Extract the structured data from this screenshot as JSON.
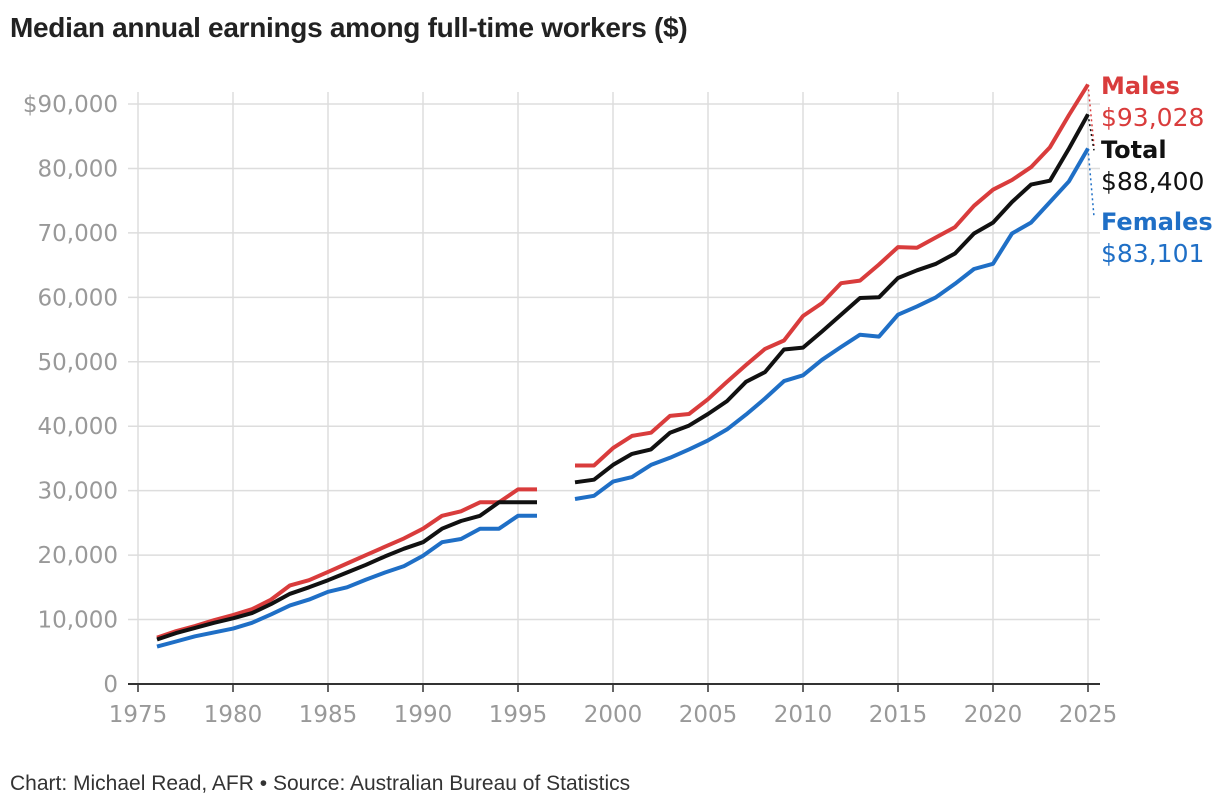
{
  "title": "Median annual earnings among full-time workers ($)",
  "credit": "Chart: Michael Read, AFR • Source: Australian Bureau of Statistics",
  "chart_data": {
    "type": "line",
    "title": "Median annual earnings among full-time workers ($)",
    "xlabel": "",
    "ylabel": "",
    "xlim": [
      1975,
      2025
    ],
    "ylim": [
      0,
      90000
    ],
    "y_ticks": [
      0,
      10000,
      20000,
      30000,
      40000,
      50000,
      60000,
      70000,
      80000,
      90000
    ],
    "y_tick_labels": [
      "0",
      "10,000",
      "20,000",
      "30,000",
      "40,000",
      "50,000",
      "60,000",
      "70,000",
      "80,000",
      "$90,000"
    ],
    "x_ticks": [
      1975,
      1980,
      1985,
      1990,
      1995,
      2000,
      2005,
      2010,
      2015,
      2020,
      2025
    ],
    "x_tick_labels": [
      "1975",
      "1980",
      "1985",
      "1990",
      "1995",
      "2000",
      "2005",
      "2010",
      "2015",
      "2020",
      "2025"
    ],
    "grid": true,
    "legend": "direct labels at right end of lines",
    "series": [
      {
        "name": "Males",
        "end_label": "$93,028",
        "color": "#d93c3c",
        "segments": [
          [
            [
              1976,
              7200
            ],
            [
              1977,
              8200
            ],
            [
              1978,
              9000
            ],
            [
              1979,
              9900
            ],
            [
              1980,
              10700
            ],
            [
              1981,
              11600
            ],
            [
              1982,
              13100
            ],
            [
              1983,
              15300
            ],
            [
              1984,
              16100
            ],
            [
              1985,
              17400
            ],
            [
              1986,
              18700
            ],
            [
              1987,
              20000
            ],
            [
              1988,
              21300
            ],
            [
              1989,
              22600
            ],
            [
              1990,
              24100
            ],
            [
              1991,
              26100
            ],
            [
              1992,
              26800
            ],
            [
              1993,
              28200
            ],
            [
              1994,
              28200
            ],
            [
              1995,
              30200
            ],
            [
              1996,
              30200
            ]
          ],
          [
            [
              1998,
              33900
            ],
            [
              1999,
              33900
            ],
            [
              2000,
              36600
            ],
            [
              2001,
              38500
            ],
            [
              2002,
              39000
            ],
            [
              2003,
              41600
            ],
            [
              2004,
              41900
            ],
            [
              2005,
              44200
            ],
            [
              2006,
              46900
            ],
            [
              2007,
              49500
            ],
            [
              2008,
              52000
            ],
            [
              2009,
              53300
            ],
            [
              2010,
              57100
            ],
            [
              2011,
              59100
            ],
            [
              2012,
              62200
            ],
            [
              2013,
              62600
            ],
            [
              2014,
              65100
            ],
            [
              2015,
              67800
            ],
            [
              2016,
              67700
            ],
            [
              2017,
              69300
            ],
            [
              2018,
              70900
            ],
            [
              2019,
              74200
            ],
            [
              2020,
              76700
            ],
            [
              2021,
              78200
            ],
            [
              2022,
              80200
            ],
            [
              2023,
              83300
            ],
            [
              2024,
              88300
            ],
            [
              2025,
              93028
            ]
          ]
        ],
        "connector_to": 83500
      },
      {
        "name": "Total",
        "end_label": "$88,400",
        "color": "#111111",
        "segments": [
          [
            [
              1976,
              6900
            ],
            [
              1977,
              7900
            ],
            [
              1978,
              8700
            ],
            [
              1979,
              9500
            ],
            [
              1980,
              10200
            ],
            [
              1981,
              11000
            ],
            [
              1982,
              12400
            ],
            [
              1983,
              14000
            ],
            [
              1984,
              15000
            ],
            [
              1985,
              16100
            ],
            [
              1986,
              17300
            ],
            [
              1987,
              18500
            ],
            [
              1988,
              19800
            ],
            [
              1989,
              21000
            ],
            [
              1990,
              22000
            ],
            [
              1991,
              24100
            ],
            [
              1992,
              25300
            ],
            [
              1993,
              26100
            ],
            [
              1994,
              28200
            ],
            [
              1995,
              28200
            ],
            [
              1996,
              28200
            ]
          ],
          [
            [
              1998,
              31300
            ],
            [
              1999,
              31700
            ],
            [
              2000,
              34000
            ],
            [
              2001,
              35700
            ],
            [
              2002,
              36400
            ],
            [
              2003,
              39000
            ],
            [
              2004,
              40100
            ],
            [
              2005,
              41900
            ],
            [
              2006,
              43900
            ],
            [
              2007,
              46900
            ],
            [
              2008,
              48400
            ],
            [
              2009,
              51900
            ],
            [
              2010,
              52200
            ],
            [
              2011,
              54700
            ],
            [
              2012,
              57300
            ],
            [
              2013,
              59900
            ],
            [
              2014,
              60000
            ],
            [
              2015,
              63000
            ],
            [
              2016,
              64200
            ],
            [
              2017,
              65200
            ],
            [
              2018,
              66800
            ],
            [
              2019,
              69900
            ],
            [
              2020,
              71600
            ],
            [
              2021,
              74800
            ],
            [
              2022,
              77500
            ],
            [
              2023,
              78100
            ],
            [
              2024,
              83100
            ],
            [
              2025,
              88400
            ]
          ]
        ],
        "connector_to": 82800
      },
      {
        "name": "Females",
        "end_label": "$83,101",
        "color": "#1f6fc6",
        "segments": [
          [
            [
              1976,
              5800
            ],
            [
              1977,
              6600
            ],
            [
              1978,
              7400
            ],
            [
              1979,
              8000
            ],
            [
              1980,
              8600
            ],
            [
              1981,
              9500
            ],
            [
              1982,
              10800
            ],
            [
              1983,
              12200
            ],
            [
              1984,
              13100
            ],
            [
              1985,
              14300
            ],
            [
              1986,
              15000
            ],
            [
              1987,
              16200
            ],
            [
              1988,
              17300
            ],
            [
              1989,
              18300
            ],
            [
              1990,
              19900
            ],
            [
              1991,
              22000
            ],
            [
              1992,
              22500
            ],
            [
              1993,
              24100
            ],
            [
              1994,
              24100
            ],
            [
              1995,
              26100
            ],
            [
              1996,
              26100
            ]
          ],
          [
            [
              1998,
              28700
            ],
            [
              1999,
              29200
            ],
            [
              2000,
              31400
            ],
            [
              2001,
              32100
            ],
            [
              2002,
              34000
            ],
            [
              2003,
              35100
            ],
            [
              2004,
              36400
            ],
            [
              2005,
              37800
            ],
            [
              2006,
              39500
            ],
            [
              2007,
              41800
            ],
            [
              2008,
              44300
            ],
            [
              2009,
              47000
            ],
            [
              2010,
              47900
            ],
            [
              2011,
              50300
            ],
            [
              2012,
              52300
            ],
            [
              2013,
              54200
            ],
            [
              2014,
              53900
            ],
            [
              2015,
              57300
            ],
            [
              2016,
              58600
            ],
            [
              2017,
              60000
            ],
            [
              2018,
              62100
            ],
            [
              2019,
              64400
            ],
            [
              2020,
              65200
            ],
            [
              2021,
              69900
            ],
            [
              2022,
              71600
            ],
            [
              2023,
              74800
            ],
            [
              2024,
              78000
            ],
            [
              2025,
              83101
            ]
          ]
        ],
        "connector_to": 72500
      }
    ]
  }
}
